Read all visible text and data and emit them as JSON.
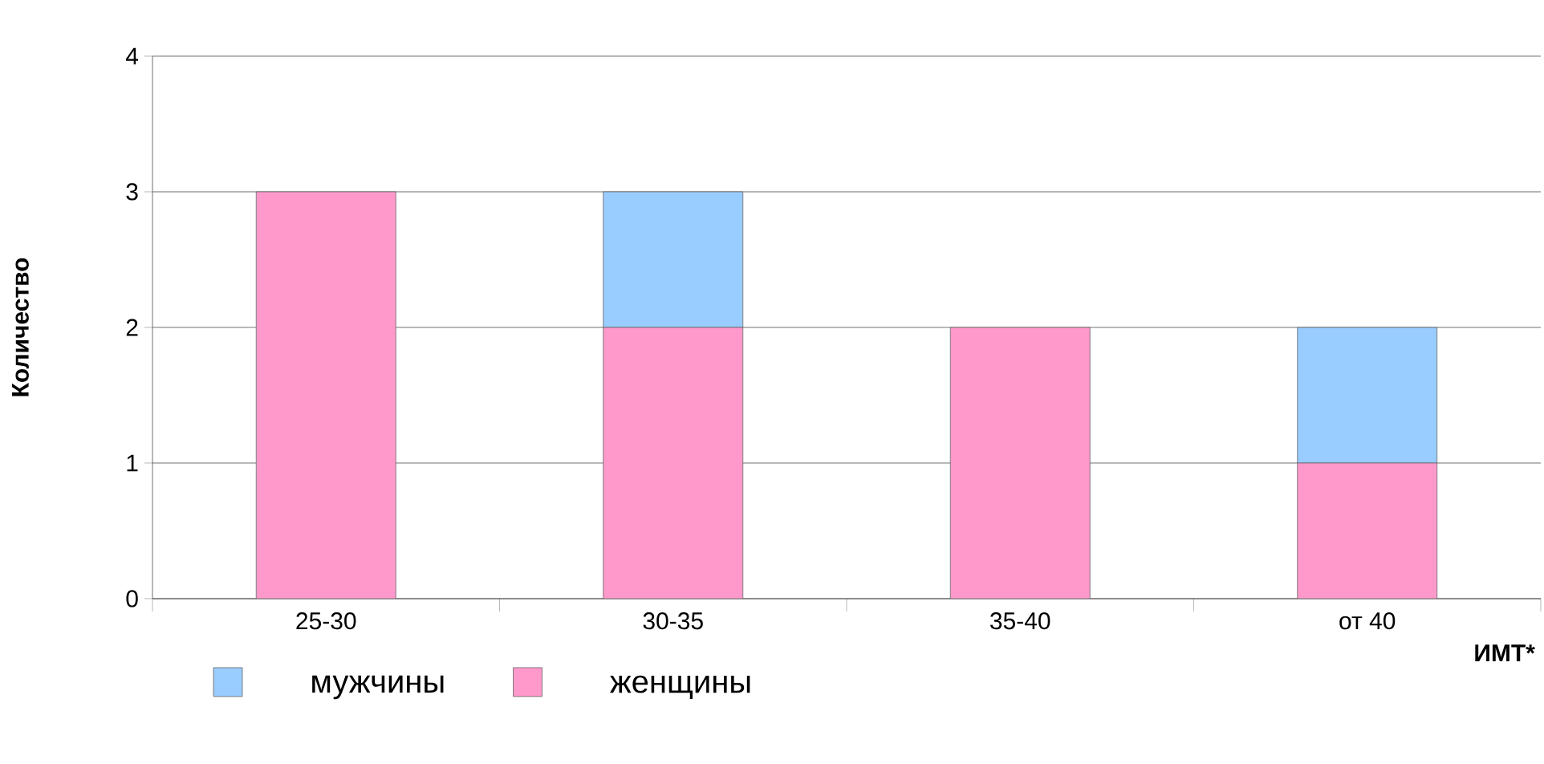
{
  "chart_data": {
    "type": "bar",
    "stacked": true,
    "xlabel": "ИМТ*",
    "ylabel": "Количество",
    "categories": [
      "25-30",
      "30-35",
      "35-40",
      "от 40"
    ],
    "series": [
      {
        "name": "женщины",
        "color": "#ff99cc",
        "values": [
          3,
          2,
          2,
          1
        ]
      },
      {
        "name": "мужчины",
        "color": "#99ccff",
        "values": [
          0,
          1,
          0,
          1
        ]
      }
    ],
    "ylim": [
      0,
      4
    ],
    "yticks": [
      0,
      1,
      2,
      3,
      4
    ],
    "grid": "y",
    "legend": "bottom left"
  }
}
